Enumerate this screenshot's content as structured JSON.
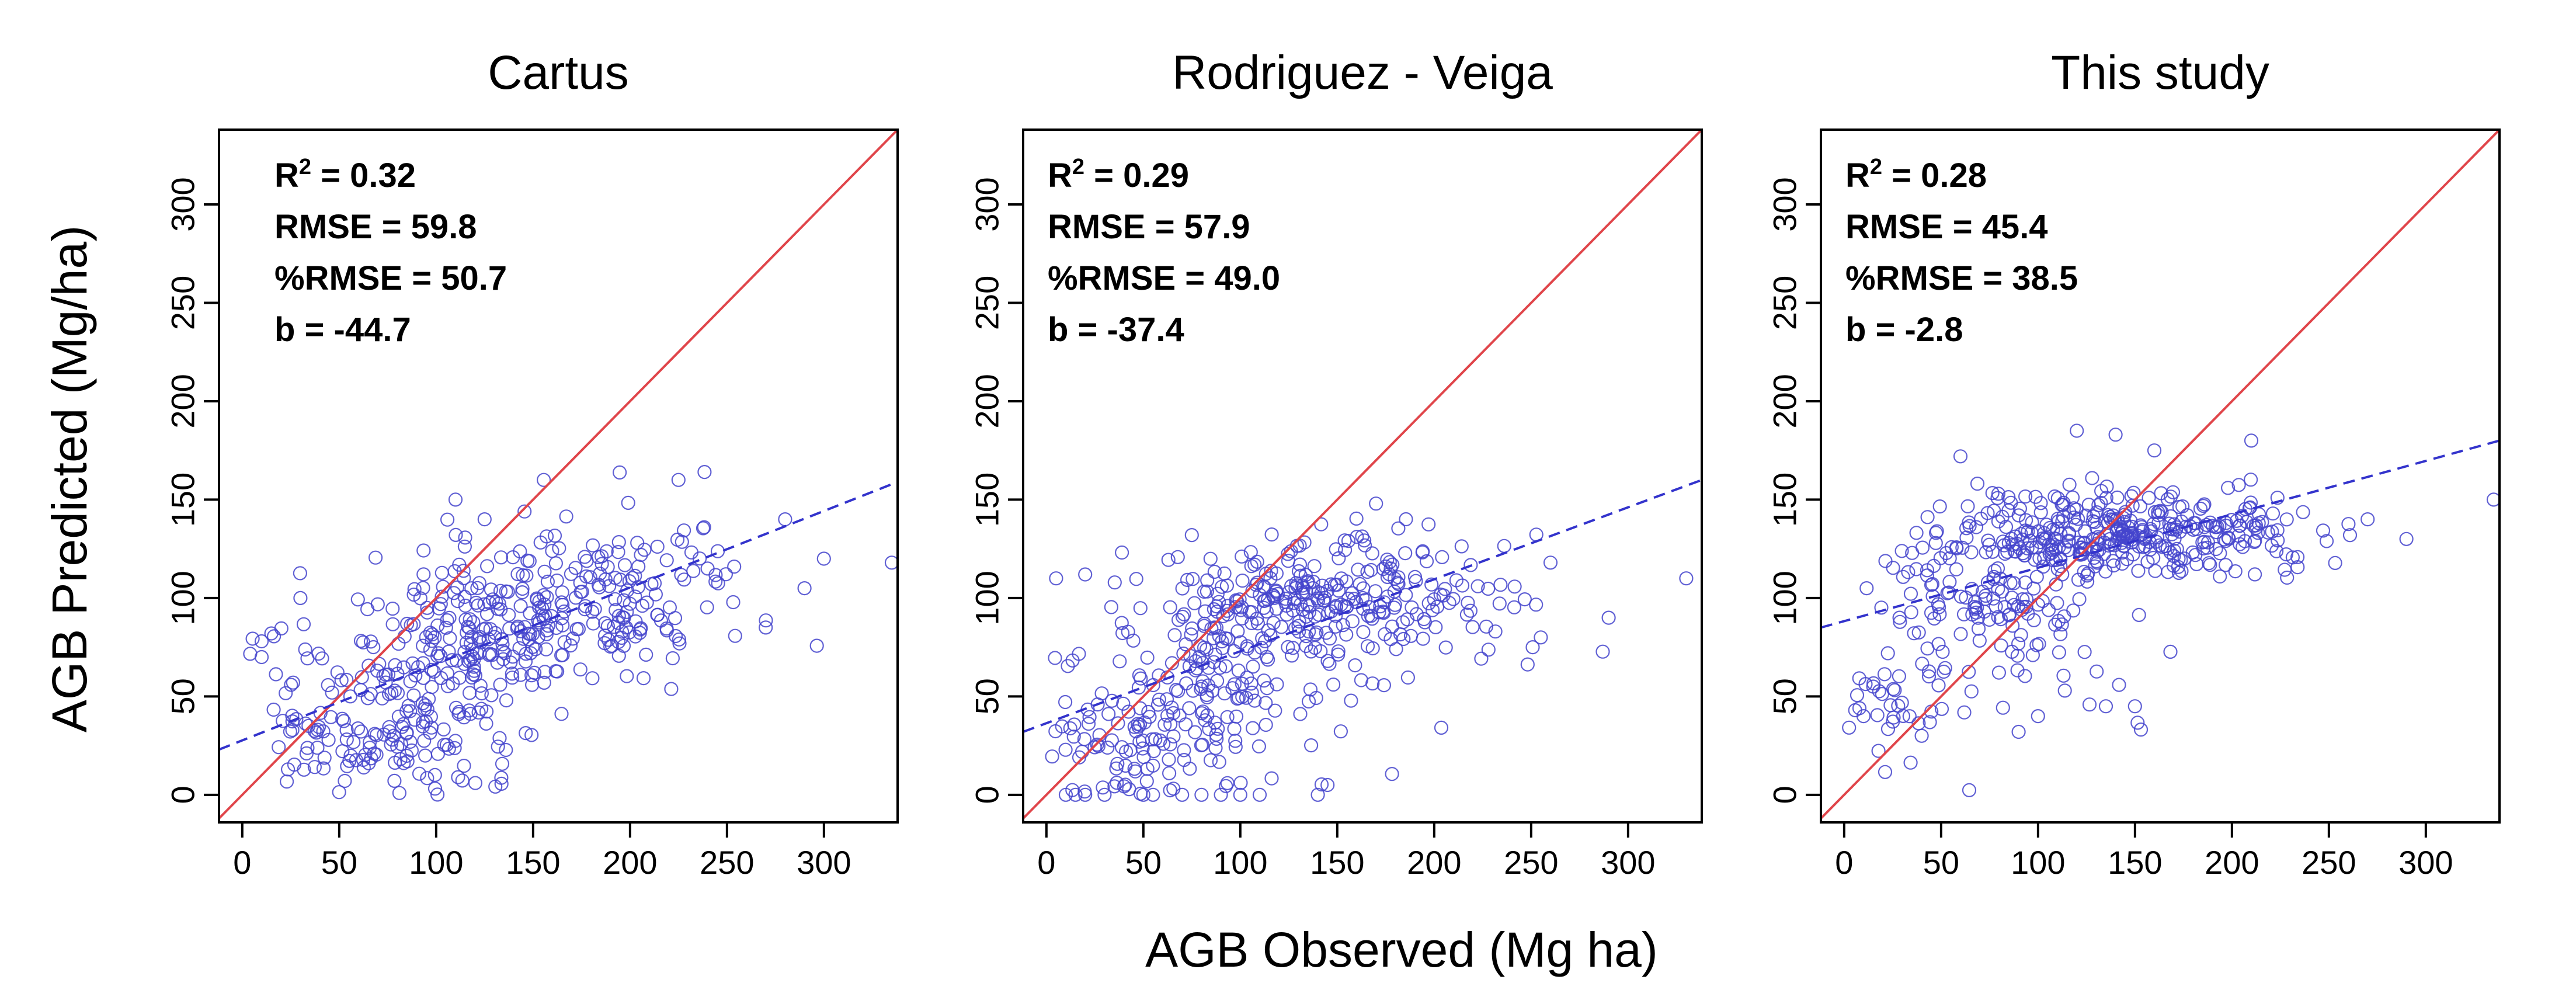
{
  "figure": {
    "xlabel": "AGB Observed (Mg ha)",
    "ylabel": "AGB Predicted (Mg/ha)"
  },
  "chart_data": [
    {
      "type": "scatter",
      "title": "Cartus",
      "xlim": [
        -12,
        338
      ],
      "ylim": [
        -14,
        338
      ],
      "xticks": [
        0,
        50,
        100,
        150,
        200,
        250,
        300
      ],
      "yticks": [
        0,
        50,
        100,
        150,
        200,
        250,
        300
      ],
      "stats": [
        {
          "label": "R",
          "sup": "2",
          "value": " = 0.32"
        },
        {
          "label": "RMSE",
          "sup": "",
          "value": " = 59.8"
        },
        {
          "label": "%RMSE",
          "sup": "",
          "value": " = 50.7"
        },
        {
          "label": "b",
          "sup": "",
          "value": " = -44.7"
        }
      ],
      "one_to_one_color": "#e0454a",
      "fit_color": "#3333cc",
      "point_color": "#4444cc",
      "fit_line": {
        "x": [
          -12,
          338
        ],
        "y": [
          23,
          159
        ]
      },
      "clusters": [
        {
          "n": 65,
          "cx": 80,
          "sx": 22,
          "cy": 25,
          "sy": 12
        },
        {
          "n": 130,
          "cx": 95,
          "sx": 30,
          "cy": 60,
          "sy": 25
        },
        {
          "n": 210,
          "cx": 150,
          "sx": 35,
          "cy": 90,
          "sy": 18
        },
        {
          "n": 70,
          "cx": 200,
          "sx": 40,
          "cy": 110,
          "sy": 20
        },
        {
          "n": 35,
          "cx": 35,
          "sx": 20,
          "cy": 40,
          "sy": 25
        }
      ],
      "points": [
        [
          10,
          78
        ],
        [
          15,
          82
        ],
        [
          10,
          70
        ],
        [
          30,
          100
        ],
        [
          110,
          150
        ],
        [
          125,
          140
        ],
        [
          280,
          140
        ],
        [
          290,
          105
        ],
        [
          300,
          120
        ],
        [
          335,
          118
        ],
        [
          270,
          85
        ],
        [
          225,
          160
        ],
        [
          240,
          115
        ]
      ]
    },
    {
      "type": "scatter",
      "title": "Rodriguez - Veiga",
      "xlim": [
        -12,
        338
      ],
      "ylim": [
        -14,
        338
      ],
      "xticks": [
        0,
        50,
        100,
        150,
        200,
        250,
        300
      ],
      "yticks": [
        0,
        50,
        100,
        150,
        200,
        250,
        300
      ],
      "stats": [
        {
          "label": "R",
          "sup": "2",
          "value": " = 0.29"
        },
        {
          "label": "RMSE",
          "sup": "",
          "value": " = 57.9"
        },
        {
          "label": "%RMSE",
          "sup": "",
          "value": " = 49.0"
        },
        {
          "label": "b",
          "sup": "",
          "value": " = -37.4"
        }
      ],
      "one_to_one_color": "#e0454a",
      "fit_color": "#3333cc",
      "point_color": "#4444cc",
      "fit_line": {
        "x": [
          -12,
          338
        ],
        "y": [
          32,
          160
        ]
      },
      "clusters": [
        {
          "n": 110,
          "cx": 70,
          "sx": 28,
          "cy": 45,
          "sy": 25
        },
        {
          "n": 230,
          "cx": 140,
          "sx": 40,
          "cy": 102,
          "sy": 16
        },
        {
          "n": 90,
          "cx": 110,
          "sx": 35,
          "cy": 70,
          "sy": 25
        },
        {
          "n": 40,
          "cx": 30,
          "sx": 18,
          "cy": 20,
          "sy": 18
        },
        {
          "n": 30,
          "cx": 210,
          "sx": 30,
          "cy": 100,
          "sy": 20
        }
      ],
      "points": [
        [
          10,
          0
        ],
        [
          15,
          0
        ],
        [
          20,
          0
        ],
        [
          30,
          0
        ],
        [
          50,
          0
        ],
        [
          55,
          0
        ],
        [
          70,
          0
        ],
        [
          80,
          0
        ],
        [
          90,
          0
        ],
        [
          100,
          0
        ],
        [
          110,
          0
        ],
        [
          140,
          0
        ],
        [
          145,
          5
        ],
        [
          5,
          110
        ],
        [
          20,
          112
        ],
        [
          75,
          132
        ],
        [
          170,
          148
        ],
        [
          290,
          90
        ],
        [
          330,
          110
        ],
        [
          255,
          80
        ],
        [
          260,
          118
        ]
      ]
    },
    {
      "type": "scatter",
      "title": "This study",
      "xlim": [
        -12,
        338
      ],
      "ylim": [
        -14,
        338
      ],
      "xticks": [
        0,
        50,
        100,
        150,
        200,
        250,
        300
      ],
      "yticks": [
        0,
        50,
        100,
        150,
        200,
        250,
        300
      ],
      "stats": [
        {
          "label": "R",
          "sup": "2",
          "value": " = 0.28"
        },
        {
          "label": "RMSE",
          "sup": "",
          "value": " = 45.4"
        },
        {
          "label": "%RMSE",
          "sup": "",
          "value": " = 38.5"
        },
        {
          "label": "b",
          "sup": "",
          "value": " = -2.8"
        }
      ],
      "one_to_one_color": "#e0454a",
      "fit_color": "#3333cc",
      "point_color": "#4444cc",
      "fit_line": {
        "x": [
          -12,
          338
        ],
        "y": [
          85,
          180
        ]
      },
      "clusters": [
        {
          "n": 300,
          "cx": 135,
          "sx": 40,
          "cy": 132,
          "sy": 11
        },
        {
          "n": 110,
          "cx": 70,
          "sx": 25,
          "cy": 100,
          "sy": 18
        },
        {
          "n": 60,
          "cx": 200,
          "sx": 30,
          "cy": 133,
          "sy": 12
        },
        {
          "n": 35,
          "cx": 25,
          "sx": 15,
          "cy": 45,
          "sy": 15
        },
        {
          "n": 30,
          "cx": 100,
          "sx": 40,
          "cy": 70,
          "sy": 25
        }
      ],
      "points": [
        [
          10,
          40
        ],
        [
          15,
          55
        ],
        [
          40,
          30
        ],
        [
          90,
          32
        ],
        [
          100,
          40
        ],
        [
          135,
          45
        ],
        [
          150,
          45
        ],
        [
          120,
          185
        ],
        [
          140,
          183
        ],
        [
          160,
          175
        ],
        [
          210,
          180
        ],
        [
          335,
          150
        ],
        [
          290,
          130
        ],
        [
          270,
          140
        ],
        [
          60,
          172
        ]
      ]
    }
  ]
}
